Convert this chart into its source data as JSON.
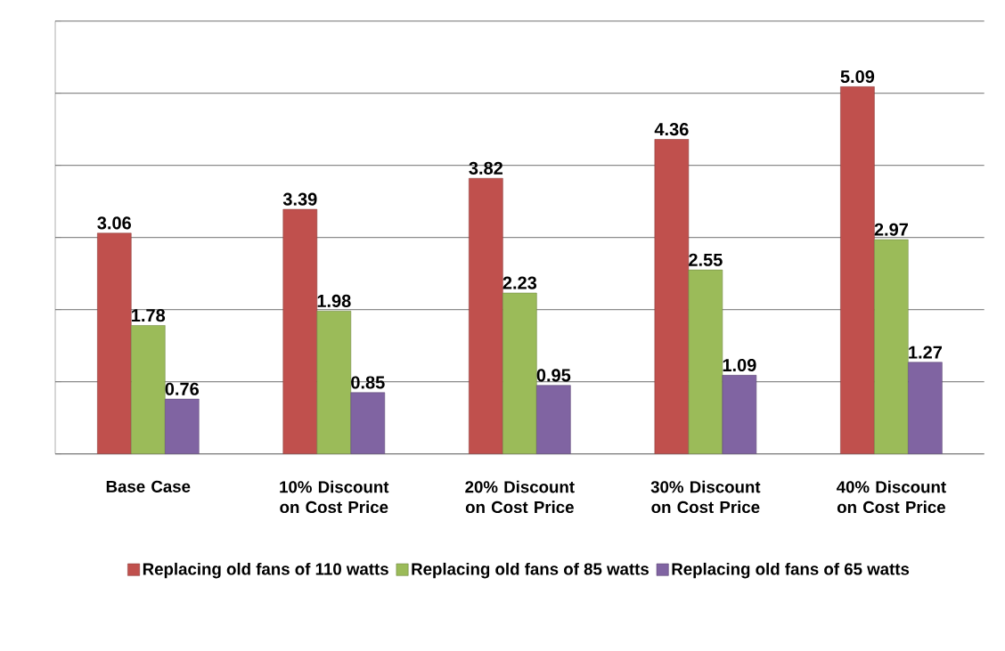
{
  "chart_data": {
    "type": "bar",
    "categories": [
      "Base Case",
      "10% Discount on Cost Price",
      "20% Discount on Cost Price",
      "30% Discount on Cost Price",
      "40% Discount on Cost Price"
    ],
    "series": [
      {
        "name": "Replacing old fans of  110 watts",
        "color": "#c0504d",
        "values": [
          3.06,
          3.39,
          3.82,
          4.36,
          5.09
        ]
      },
      {
        "name": "Replacing old fans of 85 watts",
        "color": "#9bbb59",
        "values": [
          1.78,
          1.98,
          2.23,
          2.55,
          2.97
        ]
      },
      {
        "name": "Replacing old fans of  65 watts",
        "color": "#8064a2",
        "values": [
          0.76,
          0.85,
          0.95,
          1.09,
          1.27
        ]
      }
    ],
    "ylim": [
      0,
      6
    ],
    "yticks": [
      {
        "value": 0,
        "label": null
      },
      {
        "value": 1,
        "label": null
      },
      {
        "value": 2,
        "label": null
      },
      {
        "value": 3,
        "label": null
      },
      {
        "value": 4,
        "label": null
      },
      {
        "value": 5,
        "label": null
      },
      {
        "value": 6,
        "label": null
      }
    ],
    "tick_labels": "x",
    "grid": "y",
    "legend": "bottom",
    "data_labels": true
  }
}
